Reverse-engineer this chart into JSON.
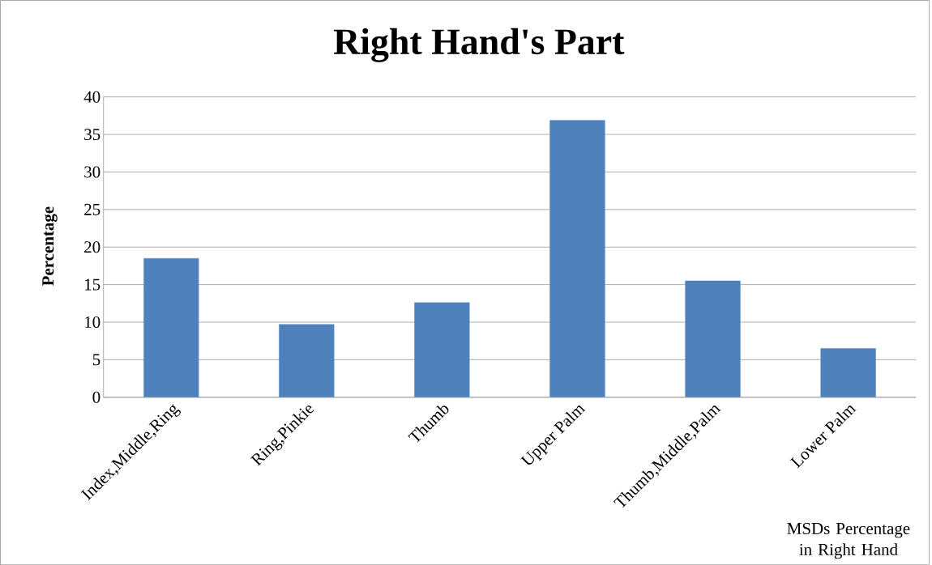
{
  "chart_data": {
    "type": "bar",
    "title": "Right Hand's Part",
    "xlabel": "MSDs Percentage in Right Hand",
    "ylabel": "Percentage",
    "categories": [
      "Index,Middle,Ring",
      "Ring,Pinkie",
      "Thumb",
      "Upper Palm",
      "Thumb,Middle,Palm",
      "Lower Palm"
    ],
    "values": [
      18.5,
      9.7,
      12.6,
      36.9,
      15.5,
      6.5
    ],
    "color": "#4f81bd",
    "ylim": [
      0,
      40
    ],
    "yticks": [
      0,
      5,
      10,
      15,
      20,
      25,
      30,
      35,
      40
    ],
    "grid": "y"
  }
}
